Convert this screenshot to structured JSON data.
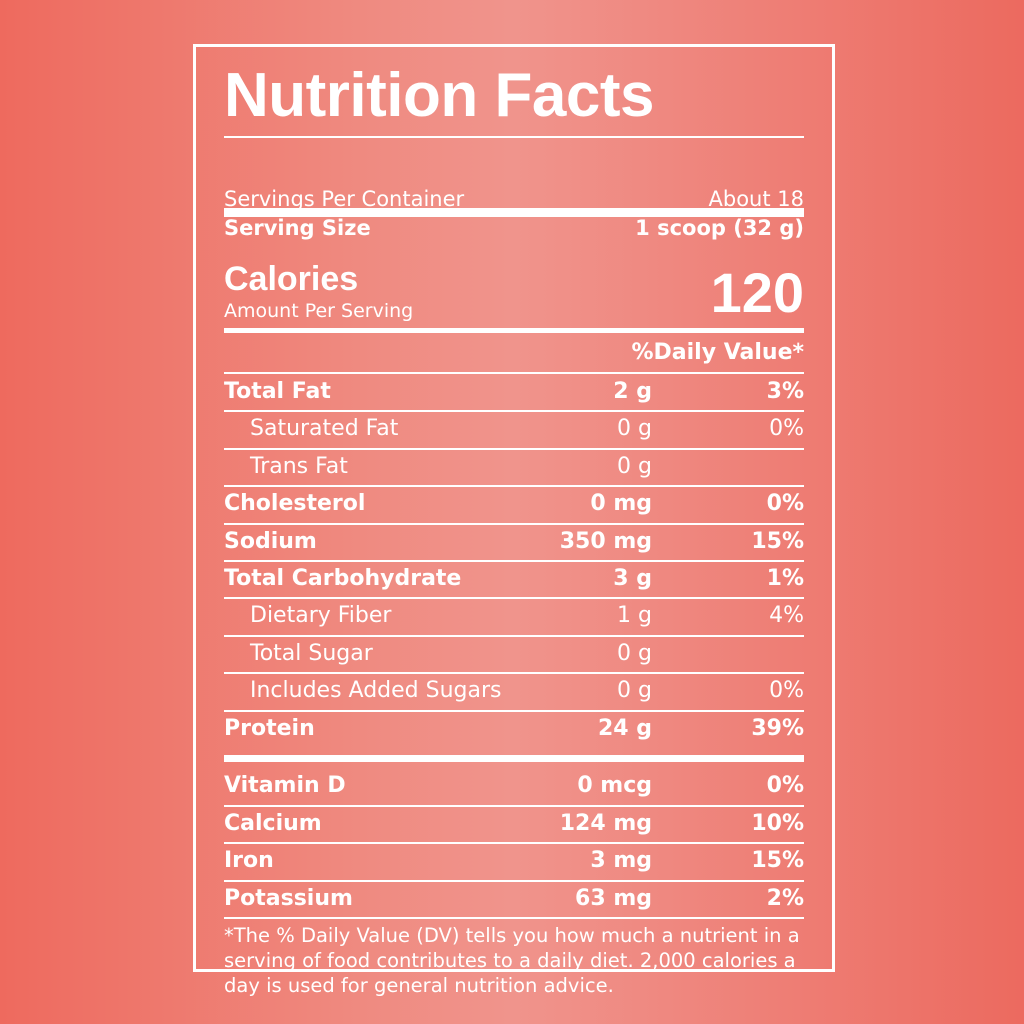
{
  "label": {
    "title": "Nutrition Facts",
    "servings_per_container_label": "Servings Per Container",
    "servings_per_container_value": "About 18",
    "serving_size_label": "Serving Size",
    "serving_size_value": "1 scoop (32 g)",
    "calories_label": "Calories",
    "calories_sublabel": "Amount Per Serving",
    "calories_value": "120",
    "daily_value_header": "%Daily Value*",
    "nutrients": [
      {
        "name": "Total Fat",
        "amount": "2 g",
        "dv": "3%"
      },
      {
        "name": "Saturated Fat",
        "amount": "0 g",
        "dv": "0%"
      },
      {
        "name": "Trans Fat",
        "amount": "0 g",
        "dv": ""
      },
      {
        "name": "Cholesterol",
        "amount": "0 mg",
        "dv": "0%"
      },
      {
        "name": "Sodium",
        "amount": "350 mg",
        "dv": "15%"
      },
      {
        "name": "Total Carbohydrate",
        "amount": "3 g",
        "dv": "1%"
      },
      {
        "name": "Dietary Fiber",
        "amount": "1 g",
        "dv": "4%"
      },
      {
        "name": "Total Sugar",
        "amount": "0 g",
        "dv": ""
      },
      {
        "name": "Includes Added Sugars",
        "amount": "0 g",
        "dv": "0%"
      },
      {
        "name": "Protein",
        "amount": "24 g",
        "dv": "39%"
      }
    ],
    "vitamins": [
      {
        "name": "Vitamin D",
        "amount": "0 mcg",
        "dv": "0%"
      },
      {
        "name": "Calcium",
        "amount": "124 mg",
        "dv": "10%"
      },
      {
        "name": "Iron",
        "amount": "3 mg",
        "dv": "15%"
      },
      {
        "name": "Potassium",
        "amount": "63 mg",
        "dv": "2%"
      }
    ],
    "footnote": "*The % Daily Value (DV) tells you how much a nutrient in a serving of food contributes to a daily diet. 2,000 calories a day is used for general nutrition advice."
  },
  "colors": {
    "text": "#ffffff",
    "background": "#ef8a80"
  }
}
